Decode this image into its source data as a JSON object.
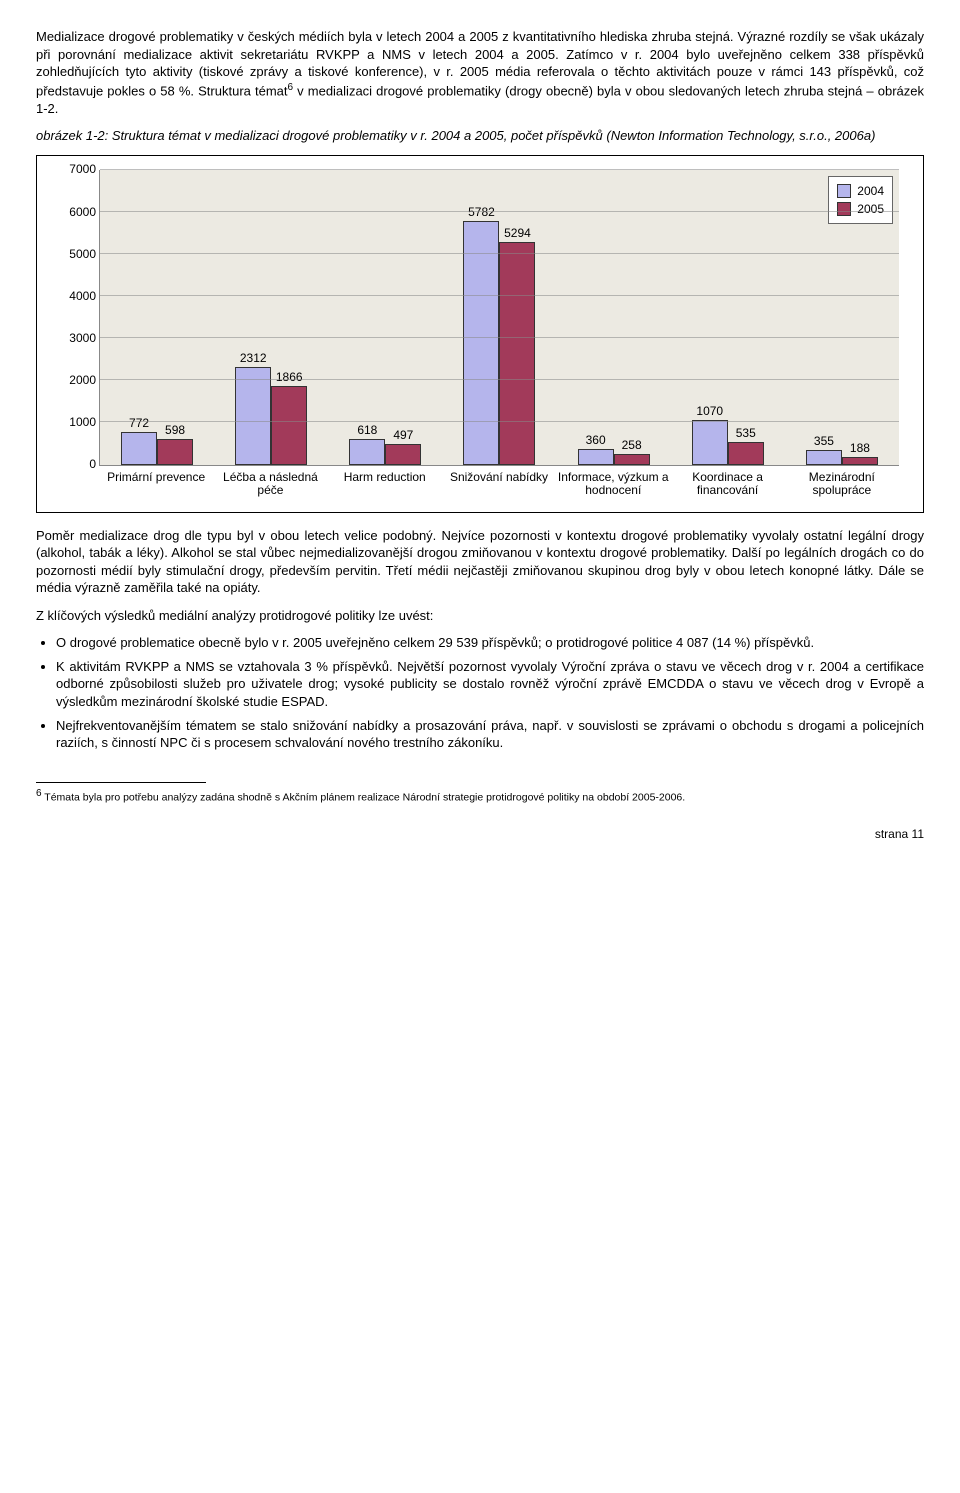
{
  "paragraphs": {
    "p1": "Medializace drogové problematiky v českých médiích byla v letech 2004 a 2005 z kvantitativního hlediska zhruba stejná. Výrazné rozdíly se však ukázaly při porovnání medializace aktivit sekretariátu RVKPP a NMS v letech 2004 a 2005. Zatímco v r. 2004 bylo uveřejněno celkem 338 příspěvků zohledňujících tyto aktivity (tiskové zprávy a tiskové konference), v r. 2005 média referovala o těchto aktivitách pouze v rámci 143 příspěvků, což představuje pokles o 58 %. Struktura témat",
    "p1_sup": "6",
    "p1_tail": " v medializaci drogové problematiky (drogy obecně) byla v obou sledovaných letech zhruba stejná – obrázek 1-2.",
    "caption": "obrázek 1-2: Struktura témat v medializaci drogové problematiky v r. 2004 a 2005, počet příspěvků (Newton Information Technology, s.r.o., 2006a)",
    "p2": "Poměr medializace drog dle typu byl v obou letech velice podobný. Nejvíce pozornosti v kontextu drogové problematiky vyvolaly ostatní legální drogy (alkohol, tabák a léky). Alkohol se stal vůbec nejmedializovanější drogou zmiňovanou v kontextu drogové problematiky. Další po legálních drogách co do pozornosti médií byly stimulační drogy, především pervitin. Třetí médii nejčastěji zmiňovanou skupinou drog byly v obou letech konopné látky. Dále se média výrazně zaměřila také na opiáty.",
    "p3": "Z klíčových výsledků mediální analýzy protidrogové politiky lze uvést:",
    "b1": "O drogové problematice obecně bylo v r. 2005 uveřejněno celkem 29 539 příspěvků; o protidrogové politice 4 087 (14 %) příspěvků.",
    "b2": "K aktivitám RVKPP a NMS se vztahovala 3 % příspěvků. Největší pozornost vyvolaly Výroční zpráva o stavu ve věcech drog v r. 2004 a certifikace odborné způsobilosti služeb pro uživatele drog; vysoké publicity se dostalo rovněž výroční zprávě EMCDDA o stavu ve věcech drog v Evropě a výsledkům mezinárodní školské studie ESPAD.",
    "b3": "Nejfrekventovanějším tématem se stalo snižování nabídky a prosazování práva, např. v souvislosti se zprávami o obchodu s drogami a policejních raziích, s činností NPC či s procesem schvalování nového trestního zákoníku.",
    "footnote": "Témata byla pro potřebu analýzy zadána shodně s Akčním plánem realizace Národní strategie protidrogové politiky na období 2005-2006.",
    "footnote_num": "6",
    "page": "strana 11"
  },
  "chart": {
    "type": "grouped-bar",
    "categories": [
      "Primární prevence",
      "Léčba a následná péče",
      "Harm reduction",
      "Snižování nabídky",
      "Informace, výzkum a hodnocení",
      "Koordinace a financování",
      "Mezinárodní spolupráce"
    ],
    "series": [
      {
        "name": "2004",
        "color": "#b5b5ec",
        "values": [
          772,
          2312,
          618,
          5782,
          360,
          1070,
          355
        ]
      },
      {
        "name": "2005",
        "color": "#a23a5a",
        "values": [
          598,
          1866,
          497,
          5294,
          258,
          535,
          188
        ]
      }
    ],
    "ymax": 7000,
    "ytick_step": 1000,
    "background_color": "#eceae2",
    "grid_color": "#888888",
    "bar_border": "#333333",
    "legend_border": "#666666"
  }
}
